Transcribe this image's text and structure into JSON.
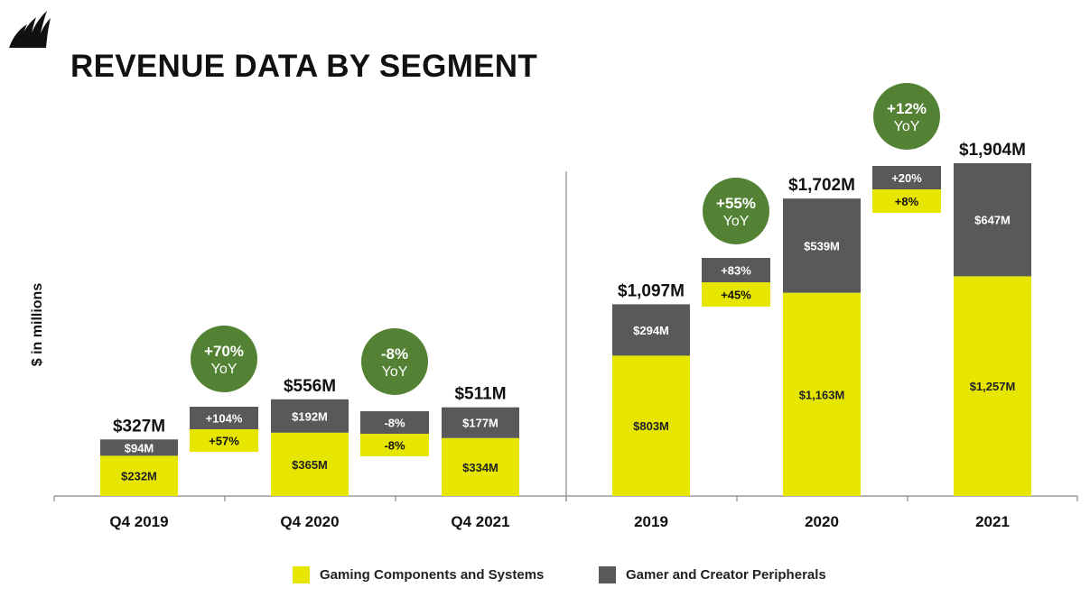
{
  "title": "REVENUE DATA BY SEGMENT",
  "colors": {
    "gaming": "#e6e600",
    "peripherals": "#595959",
    "yoy_circle": "#548235",
    "axis": "#888888"
  },
  "legend": {
    "gaming": "Gaming Components and Systems",
    "peripherals": "Gamer and Creator Peripherals"
  },
  "chart_data": {
    "type": "bar",
    "stacked": true,
    "ylabel": "$ in millions",
    "groups": [
      {
        "name": "quarterly",
        "bars": [
          {
            "label": "Q4 2019",
            "total": "$327M",
            "gaming": 232,
            "peripherals": 94,
            "gaming_label": "$232M",
            "peripherals_label": "$94M"
          },
          {
            "label": "Q4 2020",
            "total": "$556M",
            "gaming": 365,
            "peripherals": 192,
            "gaming_label": "$365M",
            "peripherals_label": "$192M"
          },
          {
            "label": "Q4 2021",
            "total": "$511M",
            "gaming": 334,
            "peripherals": 177,
            "gaming_label": "$334M",
            "peripherals_label": "$177M"
          }
        ],
        "changes": [
          {
            "peripherals": "+104%",
            "gaming": "+57%",
            "yoy": "+70%",
            "yoy_unit": "YoY"
          },
          {
            "peripherals": "-8%",
            "gaming": "-8%",
            "yoy": "-8%",
            "yoy_unit": "YoY"
          }
        ]
      },
      {
        "name": "annual",
        "bars": [
          {
            "label": "2019",
            "total": "$1,097M",
            "gaming": 803,
            "peripherals": 294,
            "gaming_label": "$803M",
            "peripherals_label": "$294M"
          },
          {
            "label": "2020",
            "total": "$1,702M",
            "gaming": 1163,
            "peripherals": 539,
            "gaming_label": "$1,163M",
            "peripherals_label": "$539M"
          },
          {
            "label": "2021",
            "total": "$1,904M",
            "gaming": 1257,
            "peripherals": 647,
            "gaming_label": "$1,257M",
            "peripherals_label": "$647M"
          }
        ],
        "changes": [
          {
            "peripherals": "+83%",
            "gaming": "+45%",
            "yoy": "+55%",
            "yoy_unit": "YoY"
          },
          {
            "peripherals": "+20%",
            "gaming": "+8%",
            "yoy": "+12%",
            "yoy_unit": "YoY"
          }
        ]
      }
    ]
  }
}
